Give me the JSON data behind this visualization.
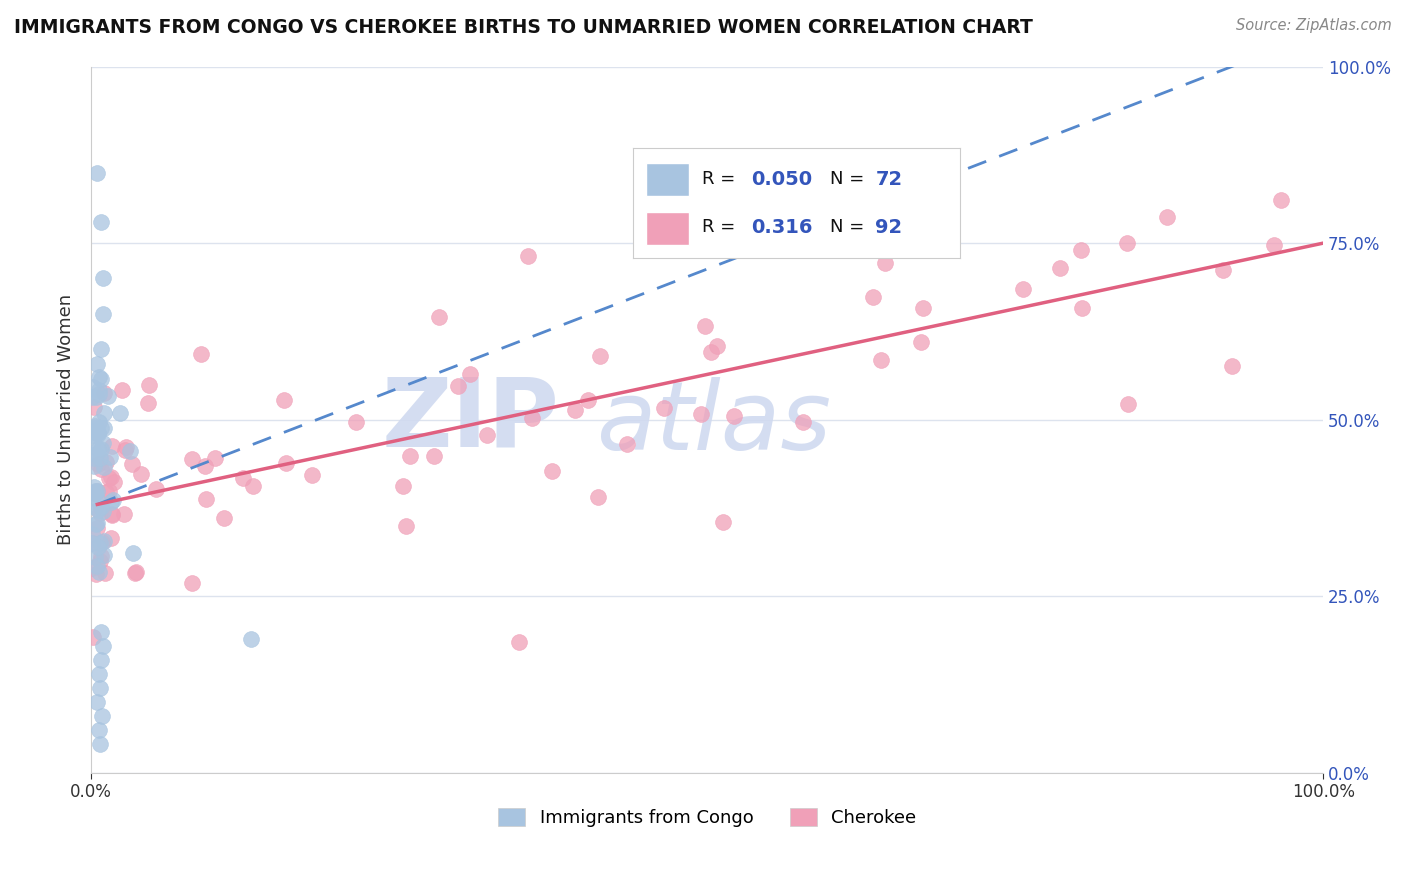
{
  "title": "IMMIGRANTS FROM CONGO VS CHEROKEE BIRTHS TO UNMARRIED WOMEN CORRELATION CHART",
  "source_text": "Source: ZipAtlas.com",
  "ylabel": "Births to Unmarried Women",
  "xlim": [
    0,
    1
  ],
  "ylim": [
    0,
    1
  ],
  "color_blue": "#a8c4e0",
  "color_pink": "#f0a0b8",
  "color_blue_line": "#5588cc",
  "color_pink_line": "#e06080",
  "background": "#ffffff",
  "grid_color": "#dde3ee",
  "watermark_zip": "ZIP",
  "watermark_atlas": "atlas",
  "watermark_color": "#d0daf0",
  "legend_r1_label": "R = ",
  "legend_r1_val": "0.050",
  "legend_n1_label": "N = ",
  "legend_n1_val": "72",
  "legend_r2_label": "R =  ",
  "legend_r2_val": "0.316",
  "legend_n2_label": "N = ",
  "legend_n2_val": "92",
  "legend_text_color": "#111111",
  "legend_val_color": "#3355bb",
  "bottom_label1": "Immigrants from Congo",
  "bottom_label2": "Cherokee",
  "blue_trendline": [
    0.005,
    0.38,
    1.0,
    1.05
  ],
  "pink_trendline": [
    0.005,
    0.38,
    1.0,
    0.75
  ]
}
